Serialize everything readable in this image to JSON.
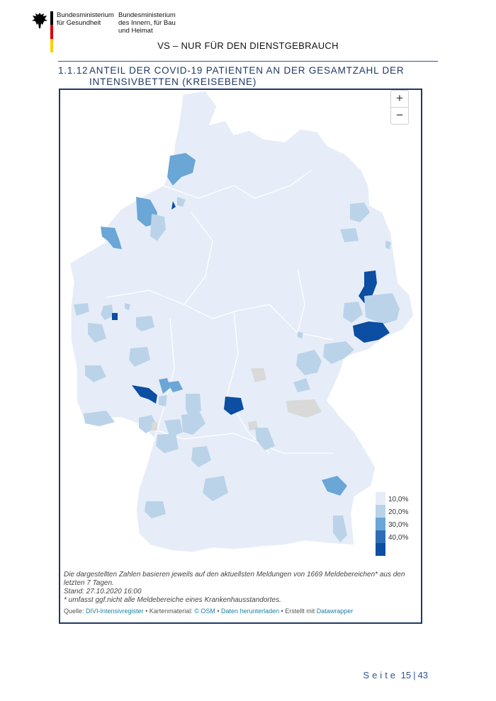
{
  "header": {
    "ministry_left_line1": "Bundesministerium",
    "ministry_left_line2": "für Gesundheit",
    "ministry_right_line1": "Bundesministerium",
    "ministry_right_line2": "des Innern, für Bau",
    "ministry_right_line3": "und Heimat",
    "flag_colors": [
      "#000000",
      "#dd0000",
      "#ffce00"
    ],
    "classification": "VS – NUR FÜR DEN DIENSTGEBRAUCH"
  },
  "section": {
    "number": "1.1.12",
    "title_line1": "ANTEIL DER COVID-19 PATIENTEN AN DER GESAMTZAHL DER",
    "title_line2": "INTENSIVBETTEN (KREISEBENE)"
  },
  "map": {
    "zoom_in_label": "+",
    "zoom_out_label": "−",
    "base_color": "#e6edf8",
    "nodata_color": "#d9d9d9",
    "legend": [
      {
        "label": "10,0%",
        "color": "#e6edf8"
      },
      {
        "label": "20,0%",
        "color": "#bad3e8"
      },
      {
        "label": "30,0%",
        "color": "#6aa6d6"
      },
      {
        "label": "40,0%",
        "color": "#2f6cb8"
      },
      {
        "label": "",
        "color": "#0b4ea2"
      }
    ]
  },
  "notes": {
    "line1": "Die dargestellten Zahlen basieren jeweils auf den aktuellsten Meldungen von 1669 Meldebereichen* aus den letzten 7 Tagen.",
    "line2": "Stand: 27.10.2020 16:00",
    "line3": "* umfasst ggf.nicht alle Meldebereiche eines Krankenhausstandortes."
  },
  "source": {
    "prefix": "Quelle: ",
    "registry": "DIVI-Intensivregister",
    "sep1": " • Kartenmaterial: ",
    "osm": "© OSM",
    "sep2": " • ",
    "download": "Daten herunterladen",
    "sep3": " • Erstellt mit ",
    "datawrapper": "Datawrapper"
  },
  "footer": {
    "seite_label": "Seite",
    "page_current": "15",
    "page_total": "43"
  }
}
